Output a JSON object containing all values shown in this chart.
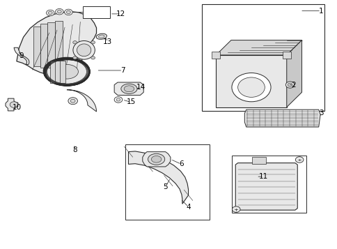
{
  "background_color": "#ffffff",
  "line_color": "#2a2a2a",
  "fig_width": 4.85,
  "fig_height": 3.57,
  "dpi": 100,
  "numbers": [
    {
      "num": "1",
      "nx": 0.952,
      "ny": 0.958
    },
    {
      "num": "2",
      "nx": 0.87,
      "ny": 0.66
    },
    {
      "num": "3",
      "nx": 0.952,
      "ny": 0.545
    },
    {
      "num": "4",
      "nx": 0.558,
      "ny": 0.168
    },
    {
      "num": "5",
      "nx": 0.49,
      "ny": 0.248
    },
    {
      "num": "6",
      "nx": 0.537,
      "ny": 0.34
    },
    {
      "num": "7",
      "nx": 0.363,
      "ny": 0.718
    },
    {
      "num": "8",
      "nx": 0.222,
      "ny": 0.398
    },
    {
      "num": "9",
      "nx": 0.062,
      "ny": 0.778
    },
    {
      "num": "10",
      "nx": 0.048,
      "ny": 0.568
    },
    {
      "num": "11",
      "nx": 0.782,
      "ny": 0.29
    },
    {
      "num": "12",
      "nx": 0.358,
      "ny": 0.946
    },
    {
      "num": "13",
      "nx": 0.318,
      "ny": 0.832
    },
    {
      "num": "14",
      "nx": 0.418,
      "ny": 0.65
    },
    {
      "num": "15",
      "nx": 0.388,
      "ny": 0.59
    }
  ]
}
